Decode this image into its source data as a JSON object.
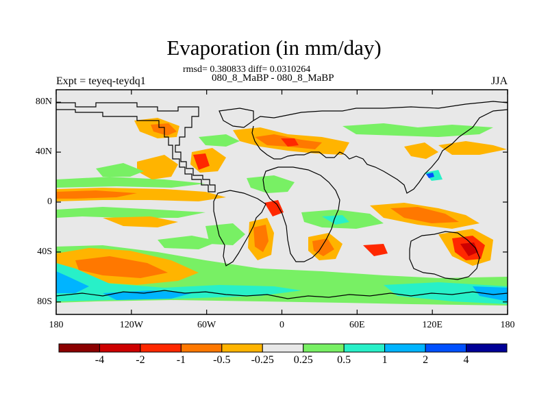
{
  "chart_data": {
    "type": "filled-contour-map",
    "title": "Evaporation (in mm/day)",
    "stats_label": "rmsd= 0.380833 diff= 0.0310264",
    "experiment_names": "080_8_MaBP - 080_8_MaBP",
    "experiment_label": "Expt = teyeq-teydq1",
    "season": "JJA",
    "x_ticks": [
      {
        "value": -180,
        "label": "180"
      },
      {
        "value": -120,
        "label": "120W"
      },
      {
        "value": -60,
        "label": "60W"
      },
      {
        "value": 0,
        "label": "0"
      },
      {
        "value": 60,
        "label": "60E"
      },
      {
        "value": 120,
        "label": "120E"
      },
      {
        "value": 180,
        "label": "180"
      }
    ],
    "y_ticks": [
      {
        "value": 80,
        "label": "80N"
      },
      {
        "value": 40,
        "label": "40N"
      },
      {
        "value": 0,
        "label": "0"
      },
      {
        "value": -40,
        "label": "40S"
      },
      {
        "value": -80,
        "label": "80S"
      }
    ],
    "xlim": [
      -180,
      180
    ],
    "ylim": [
      -90,
      90
    ],
    "colorbar": {
      "colors": [
        "#8b0000",
        "#cd0000",
        "#ff2800",
        "#ff7800",
        "#ffb400",
        "#e8e8e8",
        "#78f064",
        "#28f0c8",
        "#00b4ff",
        "#0050ff",
        "#000096"
      ],
      "labels": [
        "-4",
        "-2",
        "-1",
        "-0.5",
        "-0.25",
        "0.25",
        "0.5",
        "1",
        "2",
        "4"
      ]
    }
  }
}
